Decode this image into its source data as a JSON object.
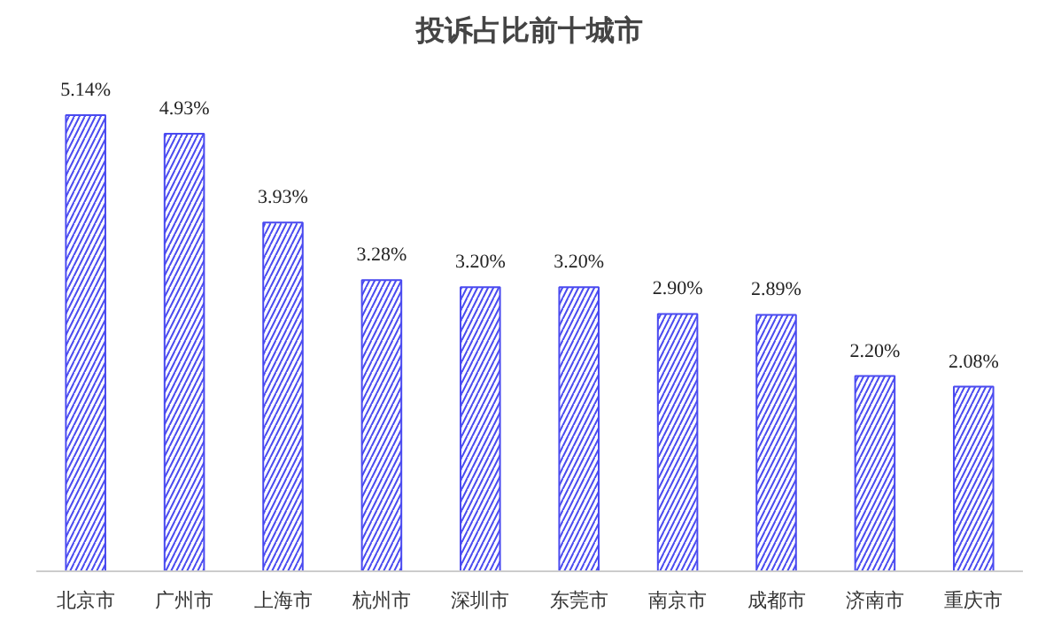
{
  "chart_data": {
    "type": "bar",
    "title": "投诉占比前十城市",
    "categories": [
      "北京市",
      "广州市",
      "上海市",
      "杭州市",
      "深圳市",
      "东莞市",
      "南京市",
      "成都市",
      "济南市",
      "重庆市"
    ],
    "values": [
      5.14,
      4.93,
      3.93,
      3.28,
      3.2,
      3.2,
      2.9,
      2.89,
      2.2,
      2.08
    ],
    "value_labels": [
      "5.14%",
      "4.93%",
      "3.93%",
      "3.28%",
      "3.20%",
      "3.20%",
      "2.90%",
      "2.89%",
      "2.20%",
      "2.08%"
    ],
    "color": "#4a4af0",
    "grid": false
  }
}
